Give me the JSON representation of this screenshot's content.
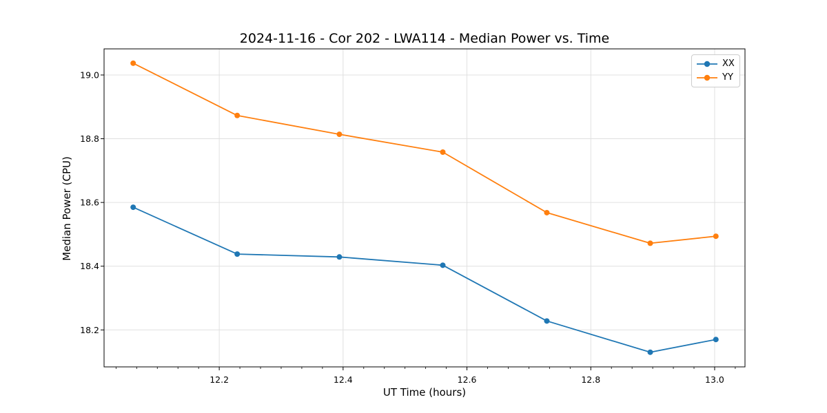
{
  "chart_data": {
    "type": "line",
    "title": "2024-11-16 - Cor 202 - LWA114 - Median Power vs. Time",
    "xlabel": "UT Time (hours)",
    "ylabel": "Median Power (CPU)",
    "x": [
      12.061,
      12.229,
      12.394,
      12.561,
      12.729,
      12.896,
      13.002
    ],
    "series": [
      {
        "name": "XX",
        "color": "#1f77b4",
        "values": [
          18.585,
          18.438,
          18.429,
          18.403,
          18.228,
          18.13,
          18.17
        ]
      },
      {
        "name": "YY",
        "color": "#ff7f0e",
        "values": [
          19.037,
          18.873,
          18.814,
          18.758,
          18.568,
          18.472,
          18.494
        ]
      }
    ],
    "xlim": [
      12.014,
      13.049
    ],
    "ylim": [
      18.084,
      19.082
    ],
    "xticks": [
      12.2,
      12.4,
      12.6,
      12.8,
      13.0
    ],
    "yticks": [
      18.2,
      18.4,
      18.6,
      18.8,
      19.0
    ],
    "tick_decimals": 1,
    "x_minor_step": 0.0333333,
    "grid": true,
    "marker": "circle",
    "legend_position": "top-right",
    "legend_entries": [
      "XX",
      "YY"
    ]
  },
  "style": {
    "grid_color": "#e0e0e0",
    "spine_color": "#000000",
    "tick_color": "#000000",
    "text_color": "#000000",
    "background": "#ffffff"
  }
}
